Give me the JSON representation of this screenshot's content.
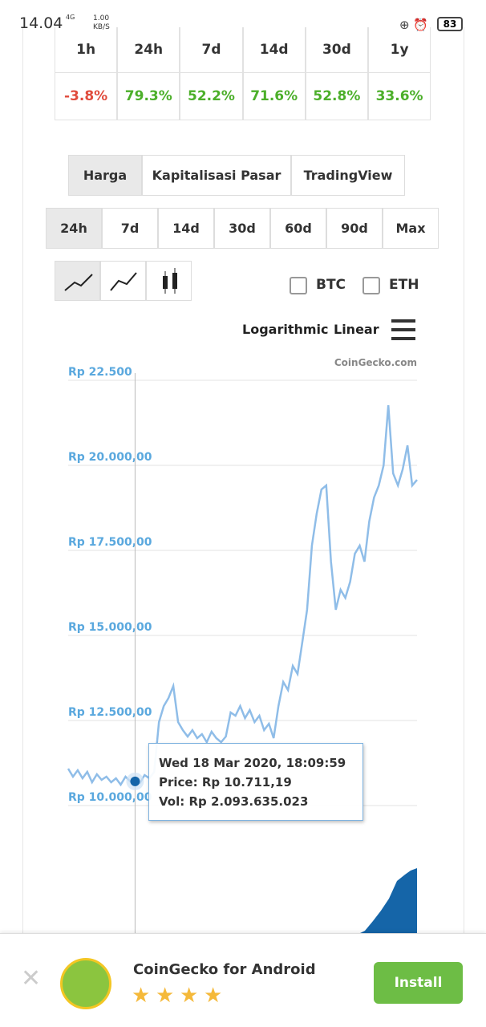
{
  "status_bar": {
    "time": "14.04",
    "network": "4G",
    "speed": "1.00",
    "speed_unit": "KB/S",
    "battery": "83"
  },
  "performance_table": {
    "headers": [
      "1h",
      "24h",
      "7d",
      "14d",
      "30d",
      "1y"
    ],
    "values": [
      "-3.8%",
      "79.3%",
      "52.2%",
      "71.6%",
      "52.8%",
      "33.6%"
    ]
  },
  "tabs": [
    "Harga",
    "Kapitalisasi Pasar",
    "TradingView"
  ],
  "ranges": [
    "24h",
    "7d",
    "14d",
    "30d",
    "60d",
    "90d",
    "Max"
  ],
  "compare": [
    "BTC",
    "ETH"
  ],
  "scale_options": [
    "Logarithmic",
    "Linear"
  ],
  "chart_data": {
    "type": "line",
    "watermark": "CoinGecko.com",
    "color": "#8fbde8",
    "values": [
      11085,
      10849,
      11037,
      10802,
      10990,
      10684,
      10920,
      10755,
      10849,
      10684,
      10802,
      10613,
      10849,
      10708,
      10711.19,
      10660,
      10896,
      10802,
      10990,
      12452,
      12924,
      13160,
      13514,
      12452,
      12217,
      12028,
      12217,
      11981,
      12099,
      11863,
      12170,
      11981,
      11863,
      12028,
      12735,
      12641,
      12924,
      12570,
      12806,
      12452,
      12641,
      12217,
      12405,
      11981,
      12924,
      13632,
      13396,
      14103,
      13867,
      14810,
      15754,
      17640,
      18583,
      19291,
      19409,
      17169,
      15754,
      16343,
      16107,
      16579,
      17404,
      17640,
      17169,
      18348,
      19055,
      19409,
      19999,
      21767,
      19763,
      19409,
      19881,
      20588,
      19409,
      19574
    ],
    "ylim": [
      10000,
      22500
    ],
    "yticks": [
      {
        "value": 10000,
        "label": "Rp 10.000,00"
      },
      {
        "value": 12500,
        "label": "Rp 12.500,00"
      },
      {
        "value": 15000,
        "label": "Rp 15.000,00"
      },
      {
        "value": 17500,
        "label": "Rp 17.500,00"
      },
      {
        "value": 20000,
        "label": "Rp 20.000,00"
      },
      {
        "value": 22500,
        "label": "Rp 22.500"
      }
    ],
    "grid": true,
    "tooltip": {
      "date": "Wed 18 Mar 2020, 18:09:59",
      "price": "Price: Rp 10.711,19",
      "volume": "Vol: Rp 2.093.635.023"
    }
  },
  "banner": {
    "title": "CoinGecko for Android",
    "rating": 4,
    "button": "Install"
  }
}
